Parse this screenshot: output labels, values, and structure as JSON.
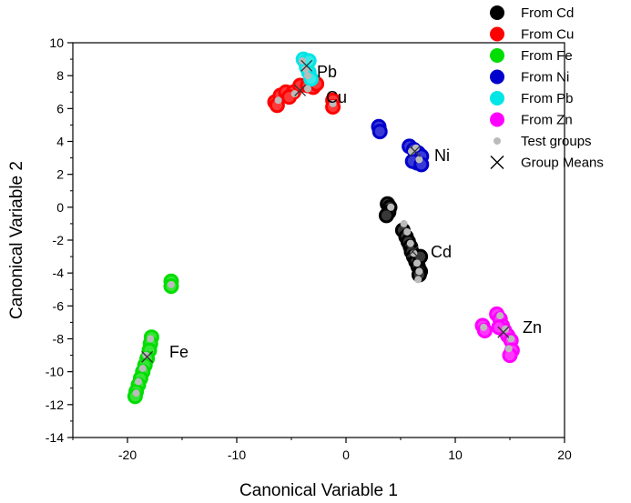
{
  "chart_data": {
    "type": "scatter",
    "title": "",
    "xlabel": "Canonical Variable 1",
    "ylabel": "Canonical Variable 2",
    "xlim": [
      -25,
      20
    ],
    "ylim": [
      -14,
      10
    ],
    "xticks": [
      -20,
      -10,
      0,
      10,
      20
    ],
    "yticks": [
      -14,
      -12,
      -10,
      -8,
      -6,
      -4,
      -2,
      0,
      2,
      4,
      6,
      8,
      10
    ],
    "xtick_labels": [
      "-20",
      "-10",
      "0",
      "10",
      "20"
    ],
    "ytick_labels": [
      "-14",
      "-12",
      "-10",
      "-8",
      "-6",
      "-4",
      "-2",
      "0",
      "2",
      "4",
      "6",
      "8",
      "10"
    ],
    "legend_position": "top-right",
    "grid": false,
    "series": [
      {
        "name": "From Cd",
        "color": "#000000",
        "label": "Cd",
        "points": [
          [
            3.8,
            0.2
          ],
          [
            4.0,
            0.0
          ],
          [
            3.9,
            -0.3
          ],
          [
            3.7,
            -0.5
          ],
          [
            5.2,
            -1.4
          ],
          [
            5.5,
            -1.8
          ],
          [
            5.7,
            -2.1
          ],
          [
            5.9,
            -2.4
          ],
          [
            6.0,
            -2.7
          ],
          [
            6.2,
            -3.0
          ],
          [
            6.4,
            -3.3
          ],
          [
            6.6,
            -3.6
          ],
          [
            6.8,
            -3.9
          ],
          [
            6.7,
            -4.1
          ],
          [
            6.8,
            -3.0
          ]
        ],
        "mean": [
          6.1,
          -2.7
        ]
      },
      {
        "name": "From Cu",
        "color": "#ff0000",
        "label": "Cu",
        "points": [
          [
            -6.5,
            6.4
          ],
          [
            -6.0,
            6.8
          ],
          [
            -5.5,
            7.0
          ],
          [
            -4.8,
            7.0
          ],
          [
            -4.2,
            7.4
          ],
          [
            -3.5,
            7.4
          ],
          [
            -3.0,
            7.3
          ],
          [
            -2.7,
            7.5
          ],
          [
            -1.2,
            6.5
          ],
          [
            -1.2,
            6.1
          ],
          [
            -6.3,
            6.2
          ],
          [
            -5.2,
            6.7
          ]
        ],
        "mean": [
          -4.2,
          7.1
        ]
      },
      {
        "name": "From Fe",
        "color": "#00dd00",
        "label": "Fe",
        "points": [
          [
            -16.0,
            -4.5
          ],
          [
            -16.0,
            -4.8
          ],
          [
            -17.8,
            -7.9
          ],
          [
            -17.9,
            -8.3
          ],
          [
            -18.0,
            -8.7
          ],
          [
            -18.2,
            -9.2
          ],
          [
            -18.4,
            -9.6
          ],
          [
            -18.6,
            -10.0
          ],
          [
            -18.8,
            -10.4
          ],
          [
            -19.0,
            -10.8
          ],
          [
            -19.2,
            -11.2
          ],
          [
            -19.3,
            -11.5
          ]
        ],
        "mean": [
          -18.2,
          -9.1
        ]
      },
      {
        "name": "From Ni",
        "color": "#0000cc",
        "label": "Ni",
        "points": [
          [
            3.0,
            4.9
          ],
          [
            3.1,
            4.6
          ],
          [
            5.8,
            3.7
          ],
          [
            6.2,
            3.5
          ],
          [
            6.6,
            3.3
          ],
          [
            6.9,
            3.1
          ],
          [
            6.5,
            2.7
          ],
          [
            6.1,
            2.8
          ],
          [
            6.9,
            2.6
          ]
        ],
        "mean": [
          6.3,
          3.4
        ]
      },
      {
        "name": "From Pb",
        "color": "#00e5e5",
        "label": "Pb",
        "points": [
          [
            -3.9,
            9.0
          ],
          [
            -3.7,
            8.8
          ],
          [
            -3.6,
            8.5
          ],
          [
            -3.4,
            8.2
          ],
          [
            -3.2,
            7.8
          ],
          [
            -3.4,
            8.9
          ]
        ],
        "mean": [
          -3.6,
          8.6
        ]
      },
      {
        "name": "From Zn",
        "color": "#ff00ff",
        "label": "Zn",
        "points": [
          [
            12.5,
            -7.2
          ],
          [
            12.7,
            -7.5
          ],
          [
            13.8,
            -6.5
          ],
          [
            14.1,
            -6.8
          ],
          [
            14.3,
            -7.2
          ],
          [
            14.5,
            -7.5
          ],
          [
            14.8,
            -7.8
          ],
          [
            15.1,
            -8.1
          ],
          [
            15.2,
            -8.7
          ],
          [
            15.0,
            -9.0
          ],
          [
            14.0,
            -7.3
          ]
        ],
        "mean": [
          14.4,
          -7.6
        ]
      }
    ],
    "test_groups": {
      "name": "Test groups",
      "color": "#bbbbbb",
      "points": [
        [
          4.1,
          0.0
        ],
        [
          5.6,
          -1.5
        ],
        [
          5.9,
          -2.2
        ],
        [
          6.2,
          -2.8
        ],
        [
          6.5,
          -3.4
        ],
        [
          6.7,
          -3.9
        ],
        [
          6.6,
          -4.4
        ],
        [
          5.3,
          -1.0
        ],
        [
          -4.0,
          8.9
        ],
        [
          -3.7,
          8.4
        ],
        [
          -3.5,
          8.0
        ],
        [
          -4.7,
          6.9
        ],
        [
          -3.5,
          7.2
        ],
        [
          -6.2,
          6.5
        ],
        [
          -1.2,
          6.3
        ],
        [
          6.0,
          3.4
        ],
        [
          6.7,
          2.9
        ],
        [
          6.4,
          3.6
        ],
        [
          -17.9,
          -8.0
        ],
        [
          -18.3,
          -9.0
        ],
        [
          -18.6,
          -9.8
        ],
        [
          -19.0,
          -10.6
        ],
        [
          -19.2,
          -11.3
        ],
        [
          -16.0,
          -4.7
        ],
        [
          14.1,
          -6.6
        ],
        [
          14.6,
          -7.4
        ],
        [
          15.1,
          -8.0
        ],
        [
          14.9,
          -8.6
        ],
        [
          12.6,
          -7.3
        ]
      ]
    },
    "legend": [
      "From Cd",
      "From Cu",
      "From Fe",
      "From Ni",
      "From Pb",
      "From Zn",
      "Test groups",
      "Group Means"
    ]
  }
}
